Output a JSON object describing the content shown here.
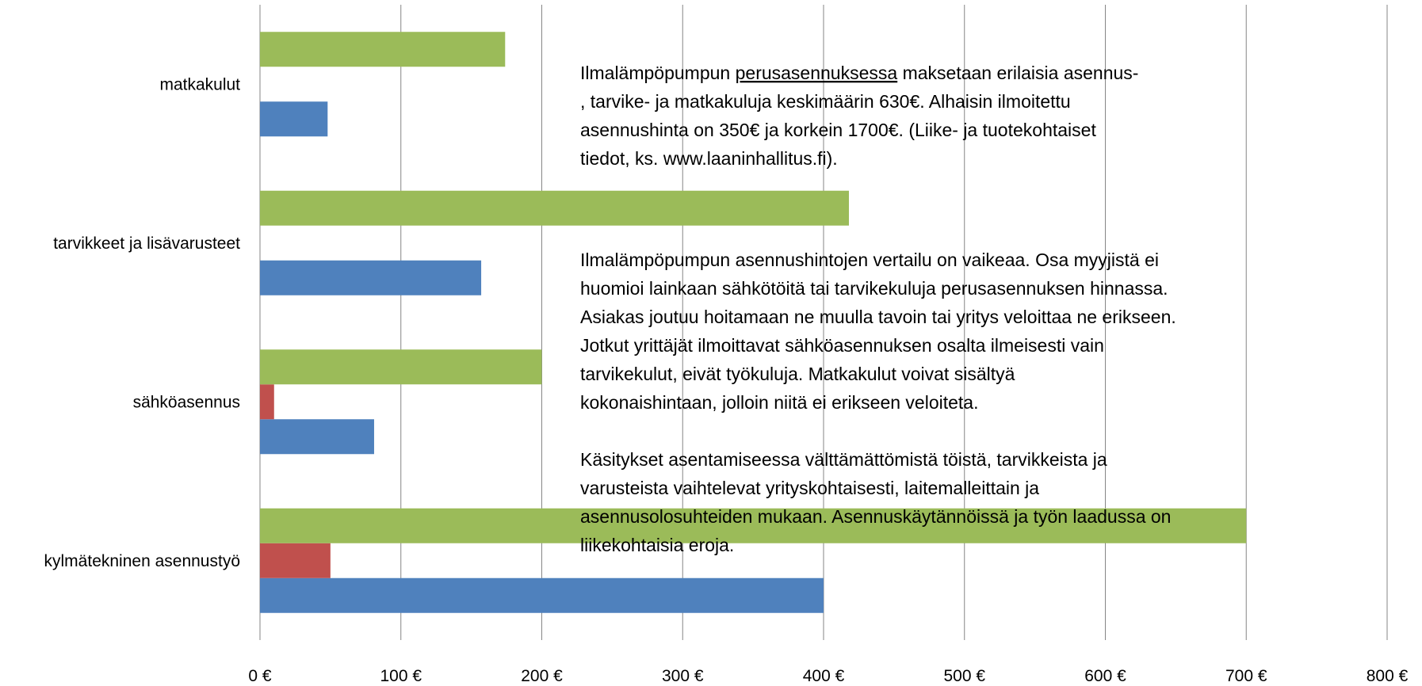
{
  "chart_data": {
    "type": "barh",
    "categories": [
      "kylmätekninen asennustyö",
      "sähköasennus",
      "tarvikkeet ja lisävarusteet",
      "matkakulut"
    ],
    "series": [
      {
        "color": "#4f81bd",
        "values": [
          400,
          81,
          157,
          48
        ]
      },
      {
        "color": "#c0504d",
        "values": [
          50,
          10,
          null,
          null
        ]
      },
      {
        "color": "#9bbb59",
        "values": [
          700,
          200,
          418,
          174
        ]
      }
    ],
    "xlim": [
      0,
      800
    ],
    "xticks": [
      {
        "value": 0,
        "label": "0 €"
      },
      {
        "value": 100,
        "label": "100 €"
      },
      {
        "value": 200,
        "label": "200 €"
      },
      {
        "value": 300,
        "label": "300 €"
      },
      {
        "value": 400,
        "label": "400 €"
      },
      {
        "value": 500,
        "label": "500 €"
      },
      {
        "value": 600,
        "label": "600 €"
      },
      {
        "value": 700,
        "label": "700 €"
      },
      {
        "value": 800,
        "label": "800 €"
      }
    ],
    "grid": true,
    "annotations": [
      {
        "lines": [
          [
            {
              "text": "Ilmalämpöpumpun "
            },
            {
              "text": "perusasennuksessa",
              "underline": true
            },
            {
              "text": " maksetaan erilaisia asennus-"
            }
          ],
          ", tarvike- ja matkakuluja keskimäärin 630€. Alhaisin ilmoitettu",
          "asennushinta on 350€ ja korkein 1700€. (Liike- ja tuotekohtaiset",
          "tiedot, ks. www.laaninhallitus.fi)."
        ]
      },
      {
        "lines": [
          "Ilmalämpöpumpun asennushintojen vertailu on vaikeaa. Osa myyjistä ei",
          "huomioi lainkaan sähkötöitä tai tarvikekuluja perusasennuksen hinnassa.",
          "Asiakas joutuu hoitamaan ne muulla tavoin tai yritys veloittaa ne erikseen.",
          "Jotkut yrittäjät ilmoittavat sähköasennuksen osalta ilmeisesti vain",
          "tarvikekulut, eivät työkuluja. Matkakulut voivat sisältyä",
          "kokonaishintaan, jolloin niitä ei erikseen veloiteta."
        ]
      },
      {
        "lines": [
          "Käsitykset asentamiseessa välttämättömistä töistä, tarvikkeista ja",
          "varusteista vaihtelevat yrityskohtaisesti, laitemalleittain ja",
          "asennusolosuhteiden mukaan.  Asennuskäytännöissä ja työn laadussa on",
          "liikekohtaisia eroja."
        ]
      }
    ]
  }
}
